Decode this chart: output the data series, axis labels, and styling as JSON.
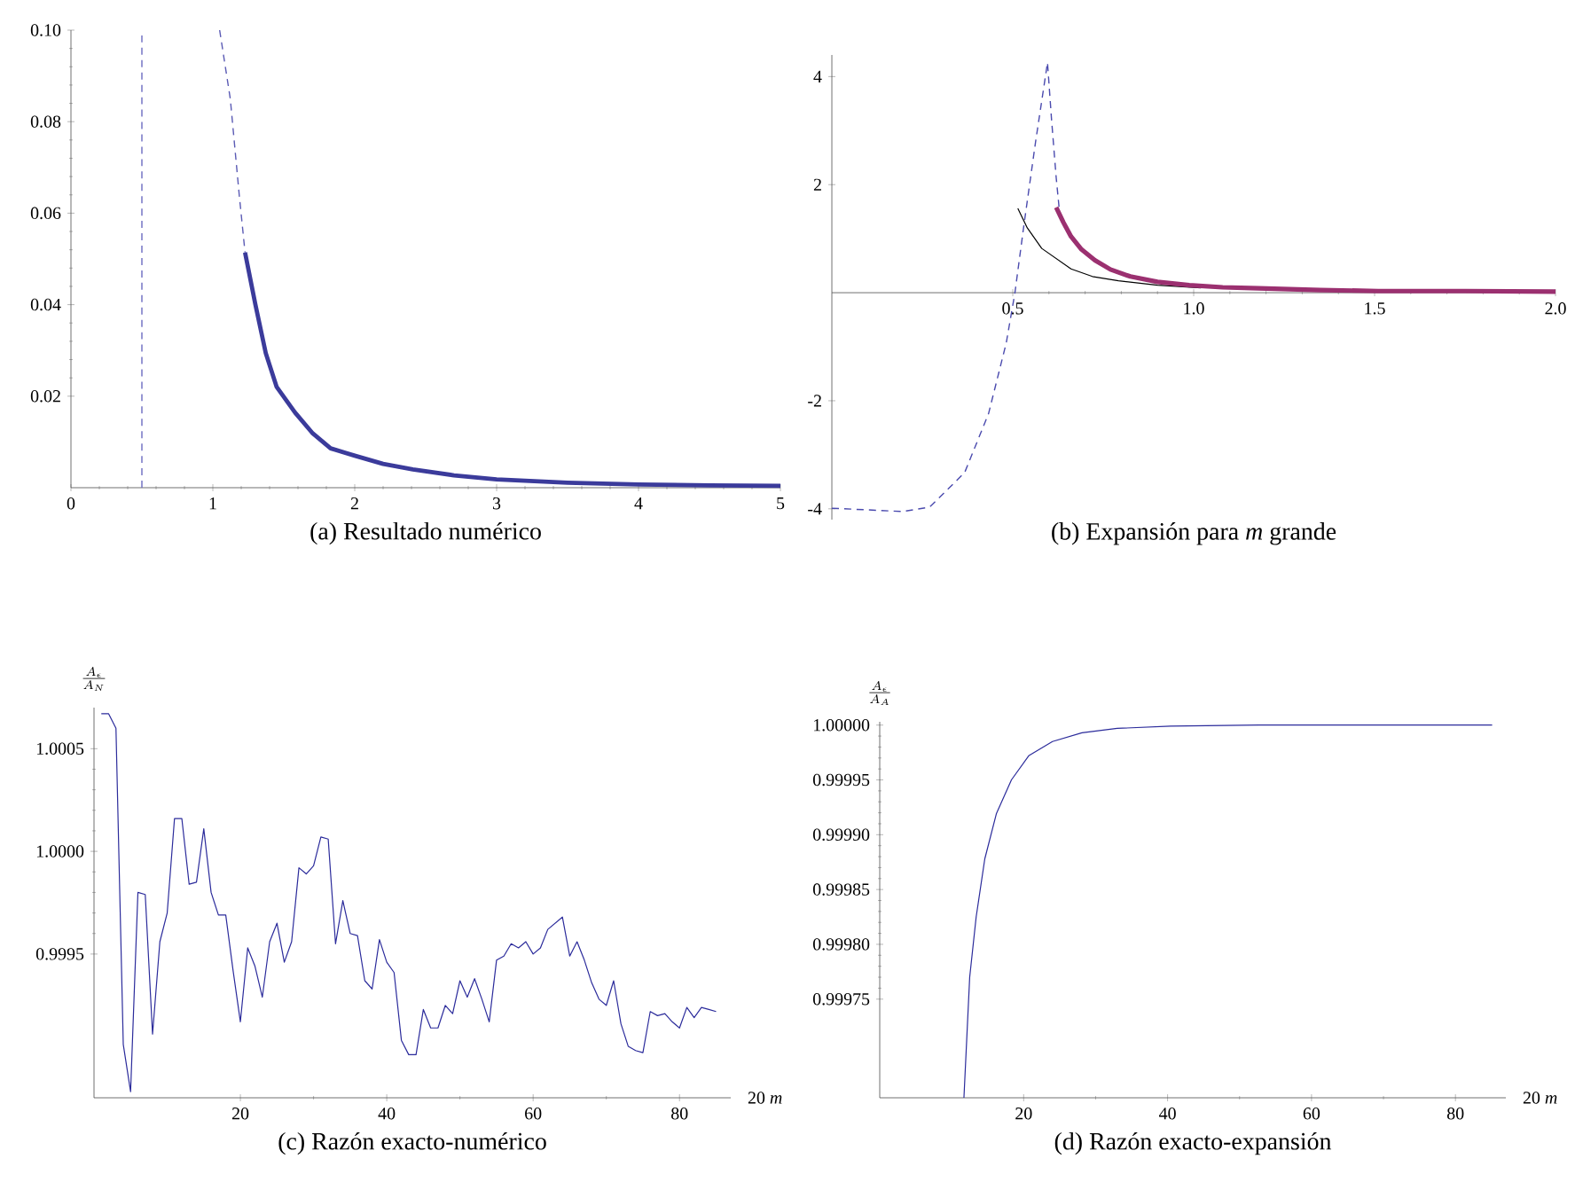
{
  "chart_data": [
    {
      "type": "line",
      "title": "(a) Resultado numérico",
      "xlim": [
        0,
        5
      ],
      "ylim": [
        0,
        0.1
      ],
      "xticks": [
        0,
        1,
        2,
        3,
        4,
        5
      ],
      "yticks": [
        0.02,
        0.04,
        0.06,
        0.08,
        {
          "value": 0.1,
          "label": "0.10"
        }
      ],
      "grid": false,
      "ref_lines": [
        {
          "axis": "x",
          "value": 0.5,
          "color": "#6a6ac0",
          "line_style": "dashed"
        }
      ],
      "series": [
        {
          "color": "#5a5ab4",
          "line_style": "dashed",
          "x": [
            1.048,
            1.123,
            1.186,
            1.227
          ],
          "values": [
            0.1,
            0.085,
            0.064,
            0.0514
          ]
        },
        {
          "color": "#3b3b9b",
          "line_style": "solid",
          "x": [
            1.227,
            1.3,
            1.373,
            1.45,
            1.58,
            1.7,
            1.83,
            2.0,
            2.2,
            2.41,
            2.7,
            3.0,
            3.5,
            4.0,
            4.5,
            5.0
          ],
          "values": [
            0.0514,
            0.04,
            0.0294,
            0.022,
            0.0164,
            0.012,
            0.0086,
            0.007,
            0.0052,
            0.004,
            0.0027,
            0.0018,
            0.0011,
            0.0007,
            0.0005,
            0.0004
          ]
        }
      ]
    },
    {
      "type": "line",
      "title": "(b) Expansión para *m* grande",
      "xlim": [
        0,
        2
      ],
      "ylim": [
        -4.2,
        4.4
      ],
      "xticks": [
        0.5,
        {
          "value": 1,
          "label": "1.0"
        },
        1.5,
        {
          "value": 2,
          "label": "2.0"
        }
      ],
      "yticks": [
        -4,
        -2,
        2,
        4
      ],
      "grid": false,
      "series": [
        {
          "color": "#4a4aae",
          "line_style": "dashed",
          "x": [
            0,
            0.1,
            0.196,
            0.27,
            0.367,
            0.433,
            0.482,
            0.506,
            0.531,
            0.563,
            0.596,
            0.607,
            0.62,
            0.628
          ],
          "values": [
            -3.99,
            -4.02,
            -4.05,
            -3.97,
            -3.33,
            -2.24,
            -0.93,
            0,
            1.26,
            2.79,
            4.26,
            3.22,
            2.13,
            1.58
          ]
        },
        {
          "color": "#000000",
          "line_style": "solid",
          "x": [
            0.514,
            0.54,
            0.58,
            0.661,
            0.72,
            0.792,
            0.9,
            1.02
          ],
          "values": [
            1.56,
            1.2,
            0.82,
            0.44,
            0.3,
            0.22,
            0.14,
            0.09
          ]
        },
        {
          "color": "#9b3070",
          "line_style": "solid",
          "x": [
            0.62,
            0.64,
            0.661,
            0.69,
            0.727,
            0.77,
            0.825,
            0.9,
            0.988,
            1.08,
            1.18,
            1.35,
            1.51,
            1.75,
            2.0
          ],
          "values": [
            1.58,
            1.3,
            1.04,
            0.8,
            0.6,
            0.43,
            0.3,
            0.2,
            0.14,
            0.1,
            0.08,
            0.05,
            0.03,
            0.03,
            0.02
          ]
        }
      ]
    },
    {
      "type": "line",
      "title": "(c) Razón exacto-numérico",
      "xlabel": "20 *m*",
      "ylabel": "\\frac{A_\\epsilon}{A_N}",
      "xlim": [
        0,
        87
      ],
      "ylim": [
        0.9988,
        1.0007
      ],
      "xticks": [
        20,
        40,
        60,
        80
      ],
      "yticks": [
        0.9995,
        {
          "value": 1,
          "label": "1.0000"
        },
        1.0005
      ],
      "grid": false,
      "series": [
        {
          "color": "#2b2b9b",
          "line_style": "solid",
          "x": [
            1,
            2,
            3,
            4,
            5,
            6,
            7,
            8,
            9,
            10,
            11,
            12,
            13,
            14,
            15,
            16,
            17,
            18,
            19,
            20,
            21,
            22,
            23,
            24,
            25,
            26,
            27,
            28,
            29,
            30,
            31,
            32,
            33,
            34,
            35,
            36,
            37,
            38,
            39,
            40,
            41,
            42,
            43,
            44,
            45,
            46,
            47,
            48,
            49,
            50,
            51,
            52,
            53,
            54,
            55,
            56,
            57,
            58,
            59,
            60,
            61,
            62,
            63,
            64,
            65,
            66,
            67,
            68,
            69,
            70,
            71,
            72,
            73,
            74,
            75,
            76,
            77,
            78,
            79,
            80,
            81,
            82,
            83,
            84,
            85
          ],
          "values": [
            1.00067,
            1.00067,
            1.0006,
            0.99906,
            0.99883,
            0.9998,
            0.99979,
            0.99911,
            0.99956,
            0.9997,
            1.00016,
            1.00016,
            0.99984,
            0.99985,
            1.00011,
            0.9998,
            0.99969,
            0.99969,
            0.99942,
            0.99917,
            0.99953,
            0.99944,
            0.99929,
            0.99956,
            0.99965,
            0.99946,
            0.99956,
            0.99992,
            0.99989,
            0.99993,
            1.00007,
            1.00006,
            0.99955,
            0.99976,
            0.9996,
            0.99959,
            0.99937,
            0.99933,
            0.99957,
            0.99946,
            0.99941,
            0.99908,
            0.99901,
            0.99901,
            0.99923,
            0.99914,
            0.99914,
            0.99925,
            0.99921,
            0.99937,
            0.99929,
            0.99938,
            0.99928,
            0.99917,
            0.99947,
            0.99949,
            0.99955,
            0.99953,
            0.99956,
            0.9995,
            0.99953,
            0.99962,
            0.99965,
            0.99968,
            0.99949,
            0.99956,
            0.99947,
            0.99936,
            0.99928,
            0.99925,
            0.99937,
            0.99916,
            0.99905,
            0.99903,
            0.99902,
            0.99922,
            0.9992,
            0.99921,
            0.99917,
            0.99914,
            0.99924,
            0.99919,
            0.99924,
            0.99923,
            0.99922
          ]
        }
      ]
    },
    {
      "type": "line",
      "title": "(d) Razón exacto-expansión",
      "xlabel": "20 *m*",
      "ylabel": "\\frac{A_\\epsilon}{A_A}",
      "xlim": [
        0,
        87
      ],
      "ylim": [
        0.99966,
        1.000003
      ],
      "xticks": [
        20,
        40,
        60,
        80
      ],
      "yticks": [
        0.99975,
        {
          "value": 0.9998,
          "label": "0.99980"
        },
        0.99985,
        {
          "value": 0.9999,
          "label": "0.99990"
        },
        0.99995,
        {
          "value": 1,
          "label": "1.00000"
        }
      ],
      "grid": false,
      "series": [
        {
          "color": "#2b2b9b",
          "line_style": "solid",
          "x": [
            11.7,
            12.5,
            13.4,
            14.6,
            16.2,
            18.3,
            20.7,
            24.0,
            28.1,
            33.0,
            40.4,
            52.7,
            85.1
          ],
          "values": [
            0.99966,
            0.99977,
            0.999825,
            0.999878,
            0.999919,
            0.99995,
            0.999972,
            0.999985,
            0.999993,
            0.999997,
            0.999999,
            1.0,
            1.0
          ]
        }
      ]
    }
  ]
}
